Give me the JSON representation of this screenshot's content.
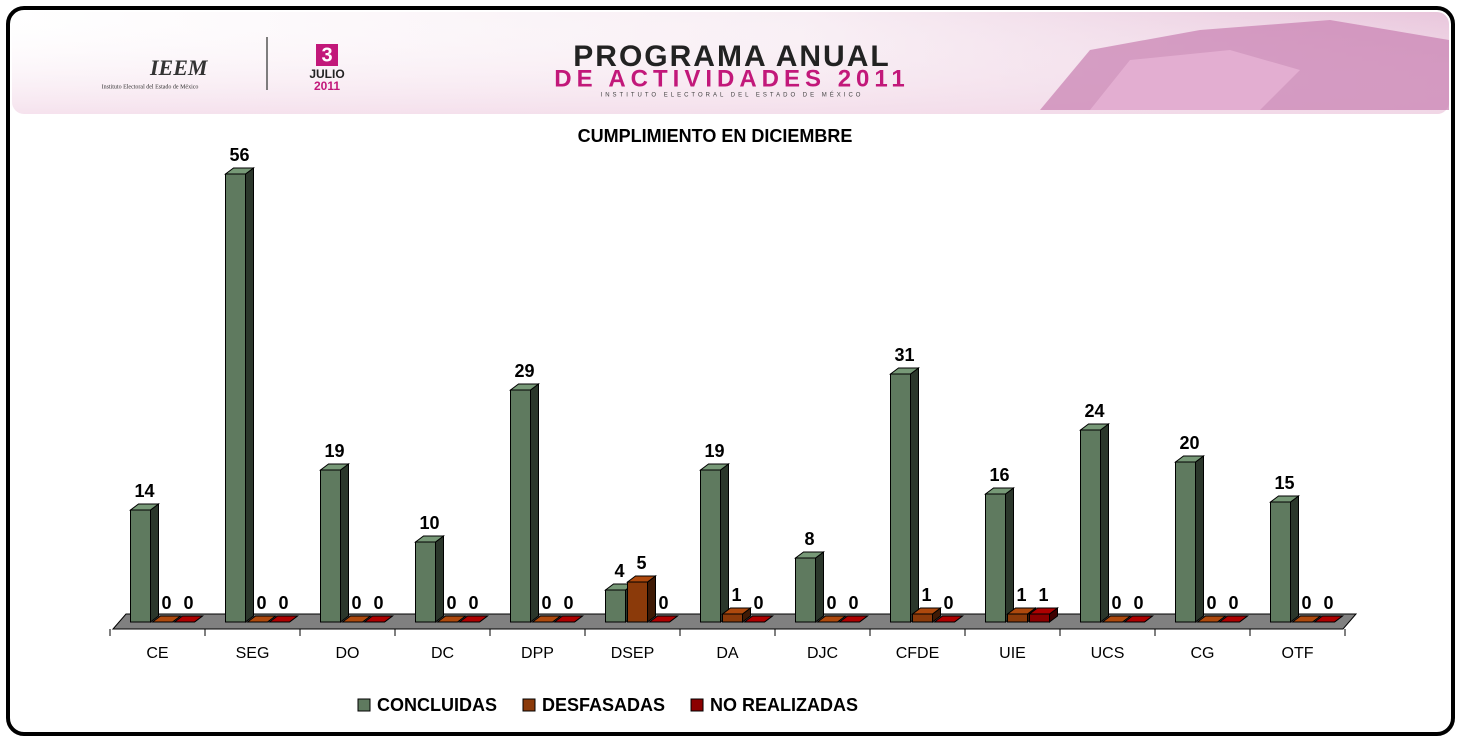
{
  "header": {
    "org_short": "IEEM",
    "org_full": "Instituto Electoral del Estado de México",
    "badge_number": "3",
    "badge_month": "JULIO",
    "badge_year": "2011",
    "program_line1": "PROGRAMA ANUAL",
    "program_line2": "DE ACTIVIDADES 2011",
    "program_line3": "INSTITUTO ELECTORAL DEL ESTADO DE MÉXICO"
  },
  "chart_data": {
    "type": "bar3d",
    "title": "CUMPLIMIENTO EN DICIEMBRE",
    "categories": [
      "CE",
      "SEG",
      "DO",
      "DC",
      "DPP",
      "DSEP",
      "DA",
      "DJC",
      "CFDE",
      "UIE",
      "UCS",
      "CG",
      "OTF"
    ],
    "series": [
      {
        "name": "CONCLUIDAS",
        "color": "#5f7a5f",
        "values": [
          14,
          56,
          19,
          10,
          29,
          4,
          19,
          8,
          31,
          16,
          24,
          20,
          15
        ]
      },
      {
        "name": "DESFASADAS",
        "color": "#8b3a0a",
        "values": [
          0,
          0,
          0,
          0,
          0,
          5,
          1,
          0,
          1,
          1,
          0,
          0,
          0
        ]
      },
      {
        "name": "NO REALIZADAS",
        "color": "#8b0000",
        "values": [
          0,
          0,
          0,
          0,
          0,
          0,
          0,
          0,
          0,
          1,
          0,
          0,
          0
        ]
      }
    ],
    "ylim": [
      0,
      60
    ],
    "legend": "bottom"
  }
}
